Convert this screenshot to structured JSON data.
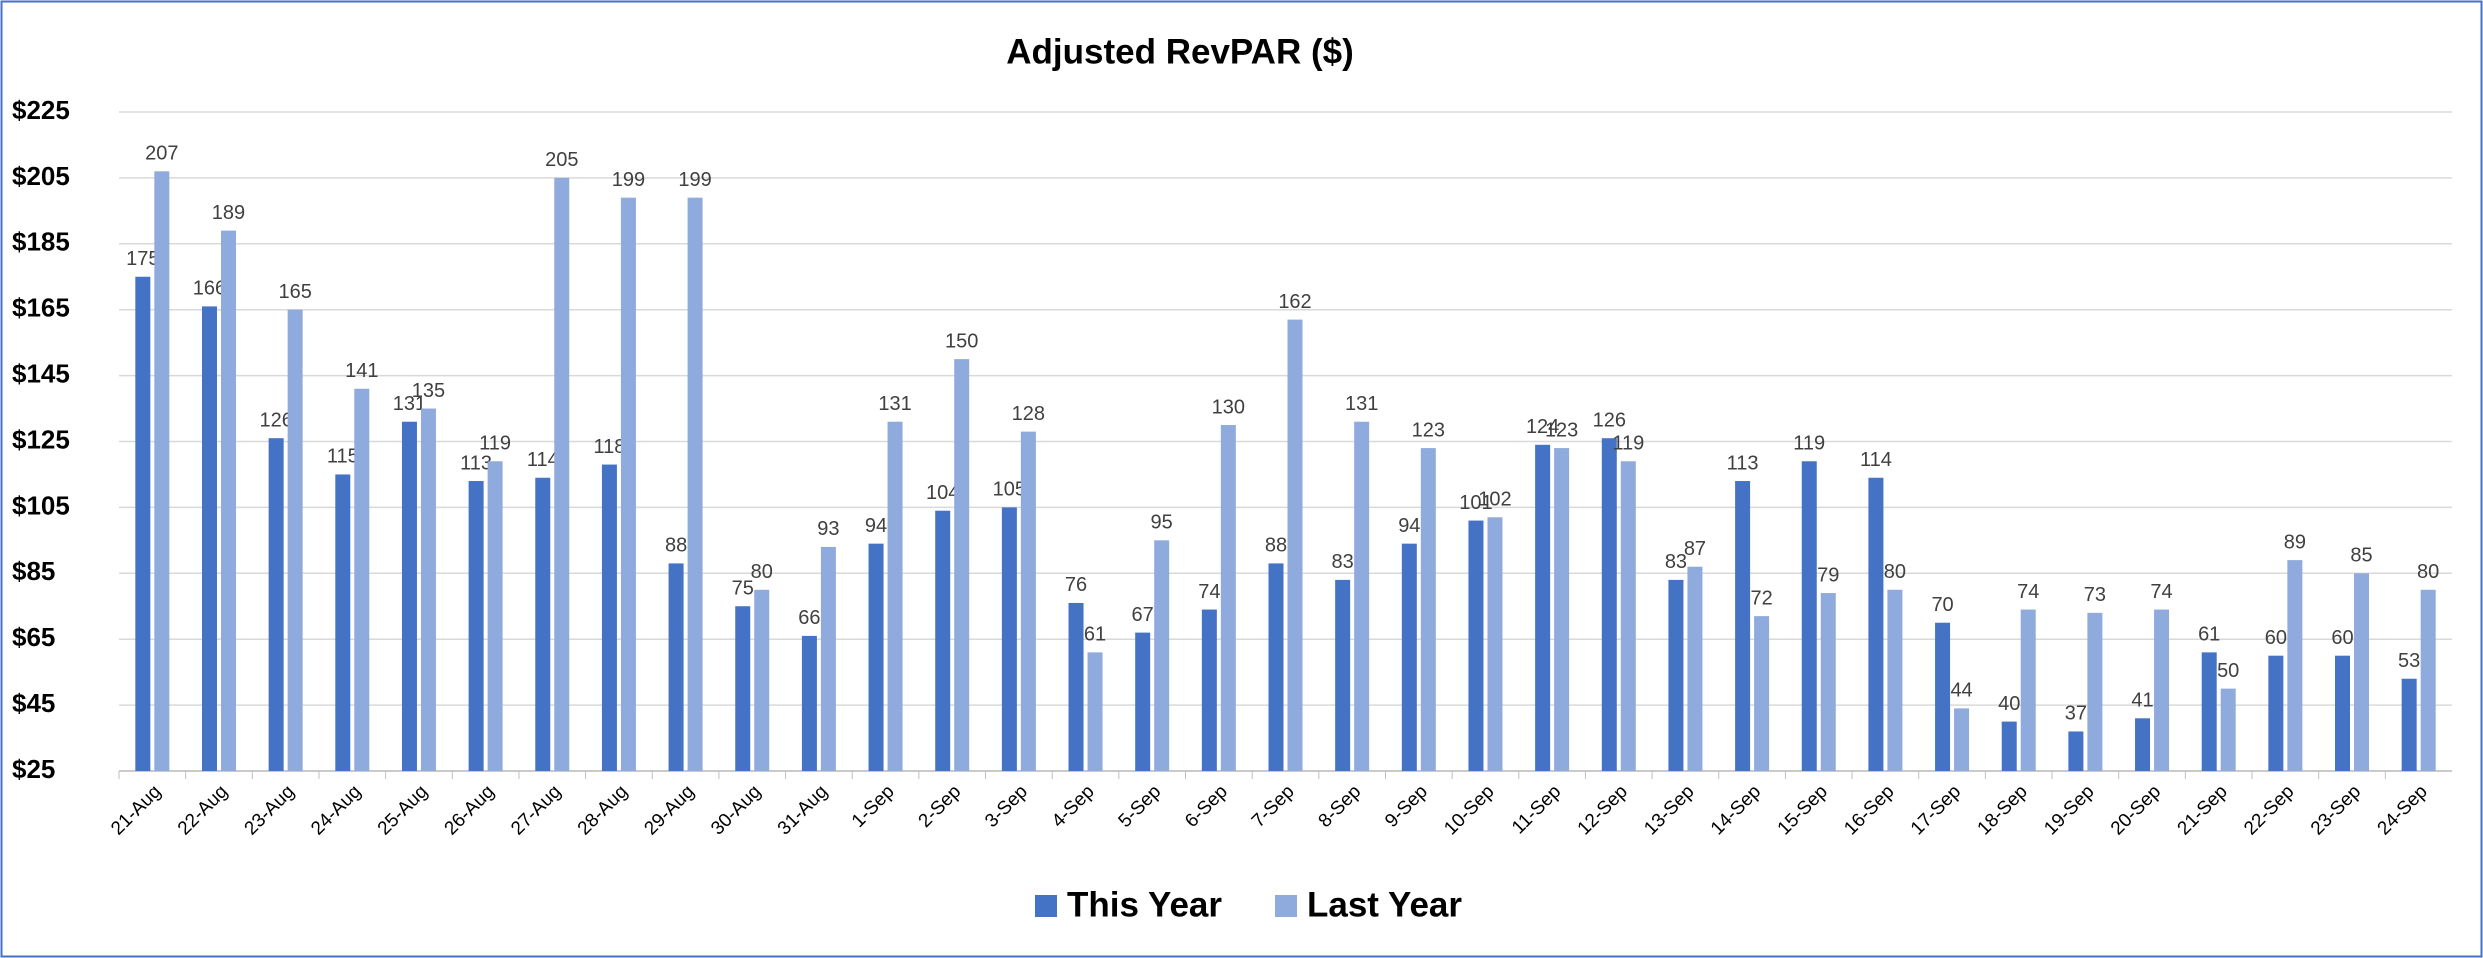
{
  "chart_data": {
    "type": "bar",
    "title": "Adjusted RevPAR ($)",
    "categories": [
      "21-Aug",
      "22-Aug",
      "23-Aug",
      "24-Aug",
      "25-Aug",
      "26-Aug",
      "27-Aug",
      "28-Aug",
      "29-Aug",
      "30-Aug",
      "31-Aug",
      "1-Sep",
      "2-Sep",
      "3-Sep",
      "4-Sep",
      "5-Sep",
      "6-Sep",
      "7-Sep",
      "8-Sep",
      "9-Sep",
      "10-Sep",
      "11-Sep",
      "12-Sep",
      "13-Sep",
      "14-Sep",
      "15-Sep",
      "16-Sep",
      "17-Sep",
      "18-Sep",
      "19-Sep",
      "20-Sep",
      "21-Sep",
      "22-Sep",
      "23-Sep",
      "24-Sep"
    ],
    "series": [
      {
        "name": "This Year",
        "color": "#4472c4",
        "values": [
          175,
          166,
          126,
          115,
          131,
          113,
          114,
          118,
          88,
          75,
          66,
          94,
          104,
          105,
          76,
          67,
          74,
          88,
          83,
          94,
          101,
          124,
          126,
          83,
          113,
          119,
          114,
          70,
          40,
          37,
          41,
          61,
          60,
          60,
          53
        ]
      },
      {
        "name": "Last Year",
        "color": "#8faadc",
        "values": [
          207,
          189,
          165,
          141,
          135,
          119,
          205,
          199,
          199,
          80,
          93,
          131,
          150,
          128,
          61,
          95,
          130,
          162,
          131,
          123,
          102,
          123,
          119,
          87,
          72,
          79,
          80,
          44,
          74,
          73,
          74,
          50,
          89,
          85,
          80
        ]
      }
    ],
    "ylim": [
      25,
      225
    ],
    "yticks": [
      {
        "value": 25,
        "label": "$25"
      },
      {
        "value": 45,
        "label": "$45"
      },
      {
        "value": 65,
        "label": "$65"
      },
      {
        "value": 85,
        "label": "$85"
      },
      {
        "value": 105,
        "label": "$105"
      },
      {
        "value": 125,
        "label": "$125"
      },
      {
        "value": 145,
        "label": "$145"
      },
      {
        "value": 165,
        "label": "$165"
      },
      {
        "value": 185,
        "label": "$185"
      },
      {
        "value": 205,
        "label": "$205"
      },
      {
        "value": 225,
        "label": "$225"
      }
    ],
    "grid": true,
    "legend": "bottom"
  }
}
